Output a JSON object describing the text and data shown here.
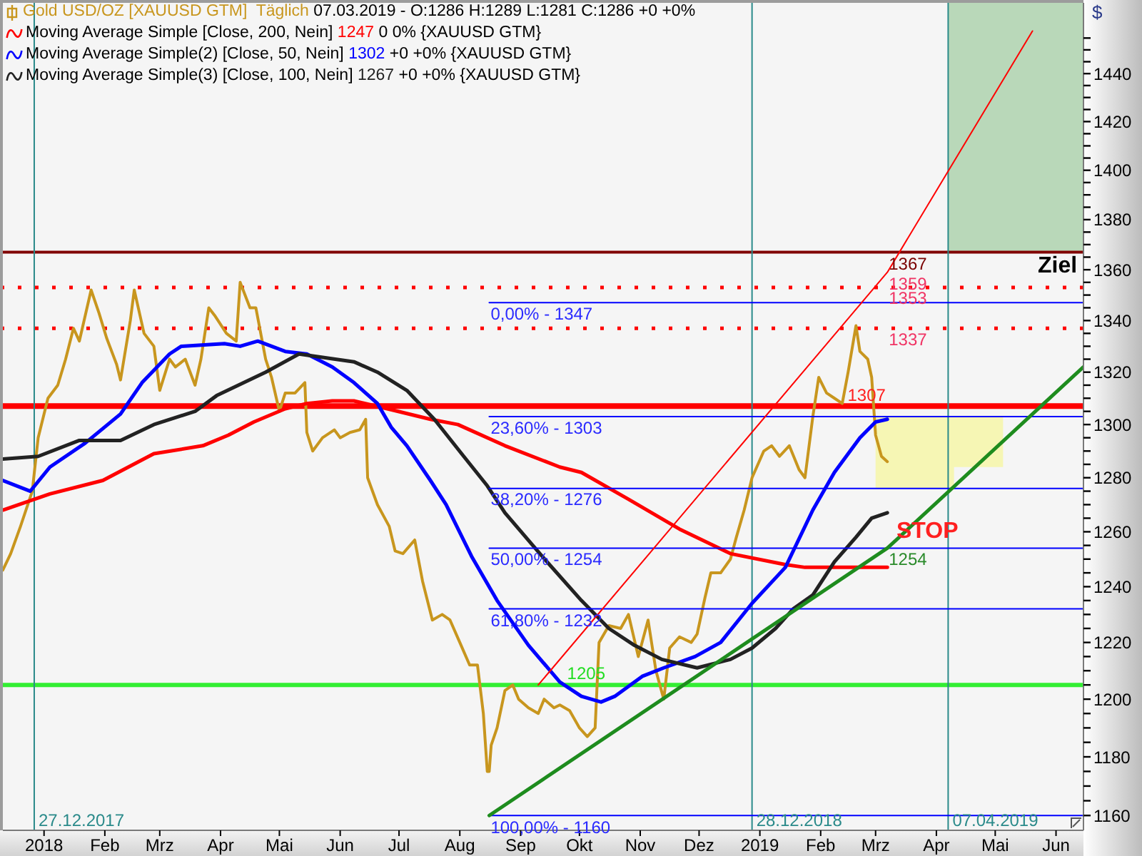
{
  "chart_data": {
    "type": "line",
    "legend": "top left",
    "marker": "none",
    "log": true,
    "ylabel": "$",
    "xlim": [
      "2017-12-11",
      "2019-06-15"
    ],
    "xticks": [
      {
        "value": "2018-01-01",
        "label": "2018"
      },
      {
        "value": "2018-02-01",
        "label": "Feb"
      },
      {
        "value": "2018-03-01",
        "label": "Mrz"
      },
      {
        "value": "2018-04-01",
        "label": "Apr"
      },
      {
        "value": "2018-05-01",
        "label": "Mai"
      },
      {
        "value": "2018-06-01",
        "label": "Jun"
      },
      {
        "value": "2018-07-01",
        "label": "Jul"
      },
      {
        "value": "2018-08-01",
        "label": "Aug"
      },
      {
        "value": "2018-09-01",
        "label": "Sep"
      },
      {
        "value": "2018-10-01",
        "label": "Okt"
      },
      {
        "value": "2018-11-01",
        "label": "Nov"
      },
      {
        "value": "2018-12-01",
        "label": "Dez"
      },
      {
        "value": "2019-01-01",
        "label": "2019"
      },
      {
        "value": "2019-02-01",
        "label": "Feb"
      },
      {
        "value": "2019-03-01",
        "label": "Mrz"
      },
      {
        "value": "2019-04-01",
        "label": "Apr"
      },
      {
        "value": "2019-05-01",
        "label": "Mai"
      },
      {
        "value": "2019-06-01",
        "label": "Jun"
      }
    ],
    "ylim": [
      1155,
      1470
    ],
    "yticks": [
      1160,
      {
        "value": 1165,
        "label": null
      },
      {
        "value": 1170,
        "label": null
      },
      {
        "value": 1175,
        "label": null
      },
      1180,
      {
        "value": 1185,
        "label": null
      },
      {
        "value": 1190,
        "label": null
      },
      {
        "value": 1195,
        "label": null
      },
      1200,
      {
        "value": 1205,
        "label": null
      },
      {
        "value": 1210,
        "label": null
      },
      {
        "value": 1215,
        "label": null
      },
      1220,
      {
        "value": 1225,
        "label": null
      },
      {
        "value": 1230,
        "label": null
      },
      {
        "value": 1235,
        "label": null
      },
      1240,
      {
        "value": 1245,
        "label": null
      },
      {
        "value": 1250,
        "label": null
      },
      {
        "value": 1255,
        "label": null
      },
      1260,
      {
        "value": 1265,
        "label": null
      },
      {
        "value": 1270,
        "label": null
      },
      {
        "value": 1275,
        "label": null
      },
      1280,
      {
        "value": 1285,
        "label": null
      },
      {
        "value": 1290,
        "label": null
      },
      {
        "value": 1295,
        "label": null
      },
      1300,
      {
        "value": 1305,
        "label": null
      },
      {
        "value": 1310,
        "label": null
      },
      {
        "value": 1315,
        "label": null
      },
      1320,
      {
        "value": 1325,
        "label": null
      },
      {
        "value": 1330,
        "label": null
      },
      {
        "value": 1335,
        "label": null
      },
      1340,
      {
        "value": 1345,
        "label": null
      },
      {
        "value": 1350,
        "label": null
      },
      {
        "value": 1355,
        "label": null
      },
      1360,
      {
        "value": 1365,
        "label": null
      },
      {
        "value": 1370,
        "label": null
      },
      {
        "value": 1375,
        "label": null
      },
      1380,
      {
        "value": 1385,
        "label": null
      },
      {
        "value": 1390,
        "label": null
      },
      {
        "value": 1395,
        "label": null
      },
      1400,
      {
        "value": 1405,
        "label": null
      },
      {
        "value": 1410,
        "label": null
      },
      {
        "value": 1415,
        "label": null
      },
      1420,
      {
        "value": 1425,
        "label": null
      },
      {
        "value": 1430,
        "label": null
      },
      {
        "value": 1435,
        "label": null
      },
      1440,
      {
        "value": 1445,
        "label": null
      },
      {
        "value": 1450,
        "label": null
      },
      {
        "value": 1455,
        "label": null
      }
    ],
    "series": [
      {
        "name": "Gold USD/OZ [XAUUSD GTM]  Täglich",
        "color": "#c8961e",
        "x": [
          "2017-12-11",
          "2017-12-15",
          "2017-12-20",
          "2017-12-26",
          "2017-12-29",
          "2018-01-03",
          "2018-01-08",
          "2018-01-12",
          "2018-01-16",
          "2018-01-19",
          "2018-01-25",
          "2018-01-29",
          "2018-02-02",
          "2018-02-07",
          "2018-02-09",
          "2018-02-14",
          "2018-02-16",
          "2018-02-21",
          "2018-02-26",
          "2018-03-01",
          "2018-03-06",
          "2018-03-09",
          "2018-03-14",
          "2018-03-19",
          "2018-03-22",
          "2018-03-26",
          "2018-03-29",
          "2018-04-04",
          "2018-04-09",
          "2018-04-11",
          "2018-04-16",
          "2018-04-19",
          "2018-04-24",
          "2018-04-27",
          "2018-05-01",
          "2018-05-04",
          "2018-05-09",
          "2018-05-14",
          "2018-05-15",
          "2018-05-18",
          "2018-05-23",
          "2018-05-29",
          "2018-06-01",
          "2018-06-06",
          "2018-06-11",
          "2018-06-14",
          "2018-06-15",
          "2018-06-20",
          "2018-06-26",
          "2018-06-29",
          "2018-07-03",
          "2018-07-09",
          "2018-07-13",
          "2018-07-18",
          "2018-07-23",
          "2018-07-27",
          "2018-08-01",
          "2018-08-06",
          "2018-08-10",
          "2018-08-13",
          "2018-08-15",
          "2018-08-16",
          "2018-08-17",
          "2018-08-20",
          "2018-08-24",
          "2018-08-28",
          "2018-08-31",
          "2018-09-05",
          "2018-09-10",
          "2018-09-13",
          "2018-09-18",
          "2018-09-21",
          "2018-09-26",
          "2018-10-01",
          "2018-10-05",
          "2018-10-09",
          "2018-10-11",
          "2018-10-16",
          "2018-10-22",
          "2018-10-26",
          "2018-10-31",
          "2018-11-05",
          "2018-11-09",
          "2018-11-13",
          "2018-11-16",
          "2018-11-21",
          "2018-11-27",
          "2018-11-30",
          "2018-12-04",
          "2018-12-07",
          "2018-12-12",
          "2018-12-17",
          "2018-12-20",
          "2018-12-24",
          "2018-12-28",
          "2019-01-03",
          "2019-01-07",
          "2019-01-11",
          "2019-01-16",
          "2019-01-21",
          "2019-01-24",
          "2019-01-28",
          "2019-01-31",
          "2019-02-04",
          "2019-02-08",
          "2019-02-12",
          "2019-02-15",
          "2019-02-19",
          "2019-02-21",
          "2019-02-25",
          "2019-02-27",
          "2019-03-01",
          "2019-03-04",
          "2019-03-07"
        ],
        "values": [
          1246,
          1252,
          1262,
          1275,
          1295,
          1310,
          1315,
          1325,
          1337,
          1332,
          1352,
          1343,
          1333,
          1323,
          1317,
          1340,
          1352,
          1335,
          1330,
          1313,
          1325,
          1322,
          1325,
          1315,
          1325,
          1345,
          1342,
          1335,
          1332,
          1355,
          1345,
          1345,
          1325,
          1318,
          1305,
          1312,
          1312,
          1316,
          1297,
          1290,
          1295,
          1298,
          1295,
          1297,
          1298,
          1302,
          1280,
          1270,
          1262,
          1253,
          1252,
          1257,
          1242,
          1228,
          1230,
          1228,
          1220,
          1212,
          1212,
          1195,
          1175,
          1175,
          1184,
          1190,
          1203,
          1205,
          1200,
          1197,
          1195,
          1200,
          1197,
          1198,
          1196,
          1190,
          1187,
          1190,
          1220,
          1226,
          1225,
          1230,
          1215,
          1228,
          1210,
          1200,
          1218,
          1222,
          1220,
          1223,
          1236,
          1245,
          1245,
          1250,
          1258,
          1268,
          1280,
          1290,
          1292,
          1288,
          1292,
          1283,
          1280,
          1303,
          1318,
          1312,
          1310,
          1308,
          1320,
          1338,
          1328,
          1325,
          1318,
          1296,
          1288,
          1286
        ]
      },
      {
        "name": "Moving Average Simple [Close, 200, Nein]",
        "color": "#ff0000",
        "x": [
          "2017-12-11",
          "2018-01-04",
          "2018-01-31",
          "2018-02-26",
          "2018-03-23",
          "2018-04-05",
          "2018-04-18",
          "2018-05-04",
          "2018-05-15",
          "2018-05-28",
          "2018-06-08",
          "2018-06-25",
          "2018-07-17",
          "2018-07-31",
          "2018-08-24",
          "2018-09-21",
          "2018-10-02",
          "2018-10-26",
          "2018-11-21",
          "2018-12-17",
          "2019-01-14",
          "2019-01-24",
          "2019-03-07"
        ],
        "values": [
          1268,
          1274,
          1279,
          1289,
          1292,
          1296,
          1301,
          1306,
          1308,
          1309,
          1309,
          1306,
          1302,
          1300,
          1292,
          1284,
          1282,
          1272,
          1261,
          1252,
          1248,
          1247,
          1247
        ]
      },
      {
        "name": "Moving Average Simple(2) [Close, 50, Nein]",
        "color": "#0000ff",
        "x": [
          "2017-12-11",
          "2017-12-25",
          "2018-01-04",
          "2018-01-22",
          "2018-02-09",
          "2018-02-20",
          "2018-03-06",
          "2018-03-12",
          "2018-04-03",
          "2018-04-11",
          "2018-04-20",
          "2018-05-04",
          "2018-05-15",
          "2018-05-28",
          "2018-06-08",
          "2018-06-20",
          "2018-06-27",
          "2018-07-05",
          "2018-07-17",
          "2018-07-25",
          "2018-08-07",
          "2018-08-20",
          "2018-09-05",
          "2018-09-21",
          "2018-10-02",
          "2018-10-12",
          "2018-10-19",
          "2018-11-02",
          "2018-11-13",
          "2018-11-29",
          "2018-12-12",
          "2018-12-28",
          "2019-01-14",
          "2019-01-28",
          "2019-02-08",
          "2019-02-21",
          "2019-03-01",
          "2019-03-07"
        ],
        "values": [
          1279,
          1275,
          1284,
          1293,
          1304,
          1316,
          1327,
          1330,
          1331,
          1330,
          1332,
          1328,
          1327,
          1322,
          1316,
          1308,
          1299,
          1292,
          1279,
          1270,
          1251,
          1235,
          1219,
          1206,
          1201,
          1199,
          1201,
          1208,
          1211,
          1215,
          1220,
          1234,
          1247,
          1268,
          1282,
          1295,
          1301,
          1302
        ]
      },
      {
        "name": "Moving Average Simple(3) [Close, 100, Nein]",
        "color": "#222222",
        "x": [
          "2017-12-11",
          "2017-12-29",
          "2018-01-19",
          "2018-02-09",
          "2018-02-26",
          "2018-03-19",
          "2018-03-30",
          "2018-04-24",
          "2018-05-11",
          "2018-06-08",
          "2018-06-20",
          "2018-07-05",
          "2018-07-19",
          "2018-08-03",
          "2018-08-15",
          "2018-08-24",
          "2018-09-12",
          "2018-10-02",
          "2018-10-16",
          "2018-10-29",
          "2018-11-12",
          "2018-11-30",
          "2018-12-17",
          "2018-12-28",
          "2019-01-09",
          "2019-01-18",
          "2019-01-28",
          "2019-02-08",
          "2019-02-19",
          "2019-02-27",
          "2019-03-07"
        ],
        "values": [
          1287,
          1288,
          1294,
          1294,
          1300,
          1305,
          1311,
          1320,
          1327,
          1324,
          1320,
          1313,
          1302,
          1288,
          1277,
          1267,
          1251,
          1235,
          1225,
          1219,
          1214,
          1211,
          1214,
          1218,
          1225,
          1232,
          1237,
          1249,
          1258,
          1265,
          1267
        ]
      },
      {
        "color": "#0000ff",
        "x": [
          "2018-08-16",
          "2019-06-15"
        ],
        "values": [
          1347,
          1347
        ]
      },
      {
        "color": "#0000ff",
        "x": [
          "2018-08-16",
          "2019-06-15"
        ],
        "values": [
          1303,
          1303
        ]
      },
      {
        "color": "#0000ff",
        "x": [
          "2018-08-16",
          "2019-06-15"
        ],
        "values": [
          1276,
          1276
        ]
      },
      {
        "color": "#0000ff",
        "x": [
          "2018-08-16",
          "2019-06-15"
        ],
        "values": [
          1254,
          1254
        ]
      },
      {
        "color": "#0000ff",
        "x": [
          "2018-08-16",
          "2019-06-15"
        ],
        "values": [
          1232,
          1232
        ]
      },
      {
        "color": "#0000ff",
        "x": [
          "2018-08-16",
          "2019-06-15"
        ],
        "values": [
          1160,
          1160
        ]
      },
      {
        "color": "#1e8c1e",
        "x": [
          "2018-08-16",
          "2019-03-07",
          "2019-06-15"
        ],
        "values": [
          1160,
          1254,
          1322
        ]
      },
      {
        "color": "#ff0000",
        "x": [
          "2018-09-10",
          "2019-03-07",
          "2019-05-20"
        ],
        "values": [
          1205,
          1359,
          1458
        ]
      },
      {
        "type": "area",
        "color": "#f6f6b4",
        "x": [
          "2019-03-01",
          "2019-04-10",
          "2019-04-10",
          "2019-05-05"
        ],
        "values": [
          null,
          null,
          null,
          null
        ],
        "lower": [
          1276,
          1276,
          1284,
          1284
        ],
        "upper": [
          1303,
          1303,
          1303,
          1303
        ]
      },
      {
        "type": "area",
        "color": "#b9d8b9",
        "x": [
          "2019-04-07",
          "2019-06-15"
        ],
        "values": [
          null,
          null
        ],
        "lower": [
          1367,
          1367
        ],
        "upper": [
          1470,
          1470
        ]
      }
    ],
    "ref_lines": [
      {
        "axis": "y",
        "value": 1367,
        "color": "#800000"
      },
      {
        "axis": "y",
        "value": 1353,
        "color": "#ff0000",
        "line_style": "dotted"
      },
      {
        "axis": "y",
        "value": 1337,
        "color": "#ff0000",
        "line_style": "dotted"
      },
      {
        "axis": "y",
        "value": 1307,
        "color": "#ff0000"
      },
      {
        "axis": "y",
        "value": 1205,
        "color": "#33ee33"
      },
      {
        "axis": "x",
        "value": "2017-12-27",
        "label": "27.12.2017",
        "color": "#2a8a8a"
      },
      {
        "axis": "x",
        "value": "2018-12-28",
        "label": "28.12.2018",
        "color": "#2a8a8a"
      },
      {
        "axis": "x",
        "value": "2019-04-07",
        "label": "07.04.2019",
        "color": "#2a8a8a"
      }
    ],
    "annotations": [
      "07.03.2019 - O:1286 H:1289 L:1281 C:1286 +0 +0%",
      "1247 0 0% {XAUUSD GTM}",
      "1302 +0 +0% {XAUUSD GTM}",
      "1267 +0 +0% {XAUUSD GTM}",
      {
        "text": "0,00% - 1347",
        "x": "2018-08-16",
        "y": 1347
      },
      {
        "text": "23,60% - 1303",
        "x": "2018-08-16",
        "y": 1303
      },
      {
        "text": "38,20% - 1276",
        "x": "2018-08-16",
        "y": 1276
      },
      {
        "text": "50,00% - 1254",
        "x": "2018-08-16",
        "y": 1254
      },
      {
        "text": "61,80% - 1232",
        "x": "2018-08-16",
        "y": 1232
      },
      {
        "text": "100,00% - 1160",
        "x": "2018-08-16",
        "y": 1160
      },
      {
        "text": "1367",
        "x": "2019-03-07",
        "y": 1367
      },
      {
        "text": "1359",
        "x": "2019-03-07",
        "y": 1359
      },
      {
        "text": "1353",
        "x": "2019-03-07",
        "y": 1353
      },
      {
        "text": "1337",
        "x": "2019-03-07",
        "y": 1337
      },
      {
        "text": "1307",
        "x": "2019-02-14",
        "y": 1307
      },
      {
        "text": "1254",
        "x": "2019-03-07",
        "y": 1254
      },
      {
        "text": "1205",
        "x": "2018-09-24",
        "y": 1205
      },
      {
        "text": "Ziel",
        "x": "2019-05-22",
        "y": 1367
      },
      "STOP"
    ]
  }
}
